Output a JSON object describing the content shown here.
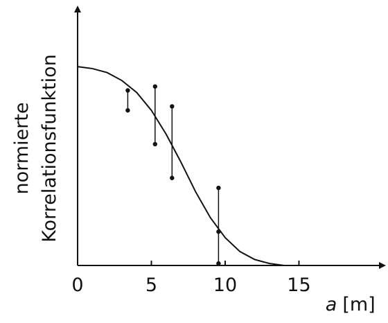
{
  "chart_data": {
    "type": "line",
    "ylabel": [
      "normierte",
      "Korrelationsfunktion"
    ],
    "xlabel": {
      "symbol": "a",
      "unit": "[m]"
    },
    "xlim": [
      0,
      20.8
    ],
    "ylim": [
      0,
      1.3
    ],
    "xticks": [
      0,
      5,
      10,
      15
    ],
    "color": "#111111",
    "x": [
      0,
      1,
      2,
      3,
      4,
      5,
      6,
      7,
      8,
      9,
      10,
      11,
      12,
      13,
      14,
      15,
      16,
      17.5
    ],
    "y": [
      1.0,
      0.99,
      0.97,
      0.93,
      0.87,
      0.78,
      0.66,
      0.52,
      0.37,
      0.24,
      0.14,
      0.07,
      0.03,
      0.01,
      0.0,
      0.0,
      0.0,
      0.0
    ],
    "error_bars": {
      "x": [
        3.4,
        5.25,
        6.4,
        9.55
      ],
      "low": [
        0.78,
        0.61,
        0.44,
        0.01
      ],
      "high": [
        0.88,
        0.9,
        0.8,
        0.39
      ]
    },
    "points": {
      "x": [
        9.55
      ],
      "y": [
        0.17
      ]
    }
  }
}
